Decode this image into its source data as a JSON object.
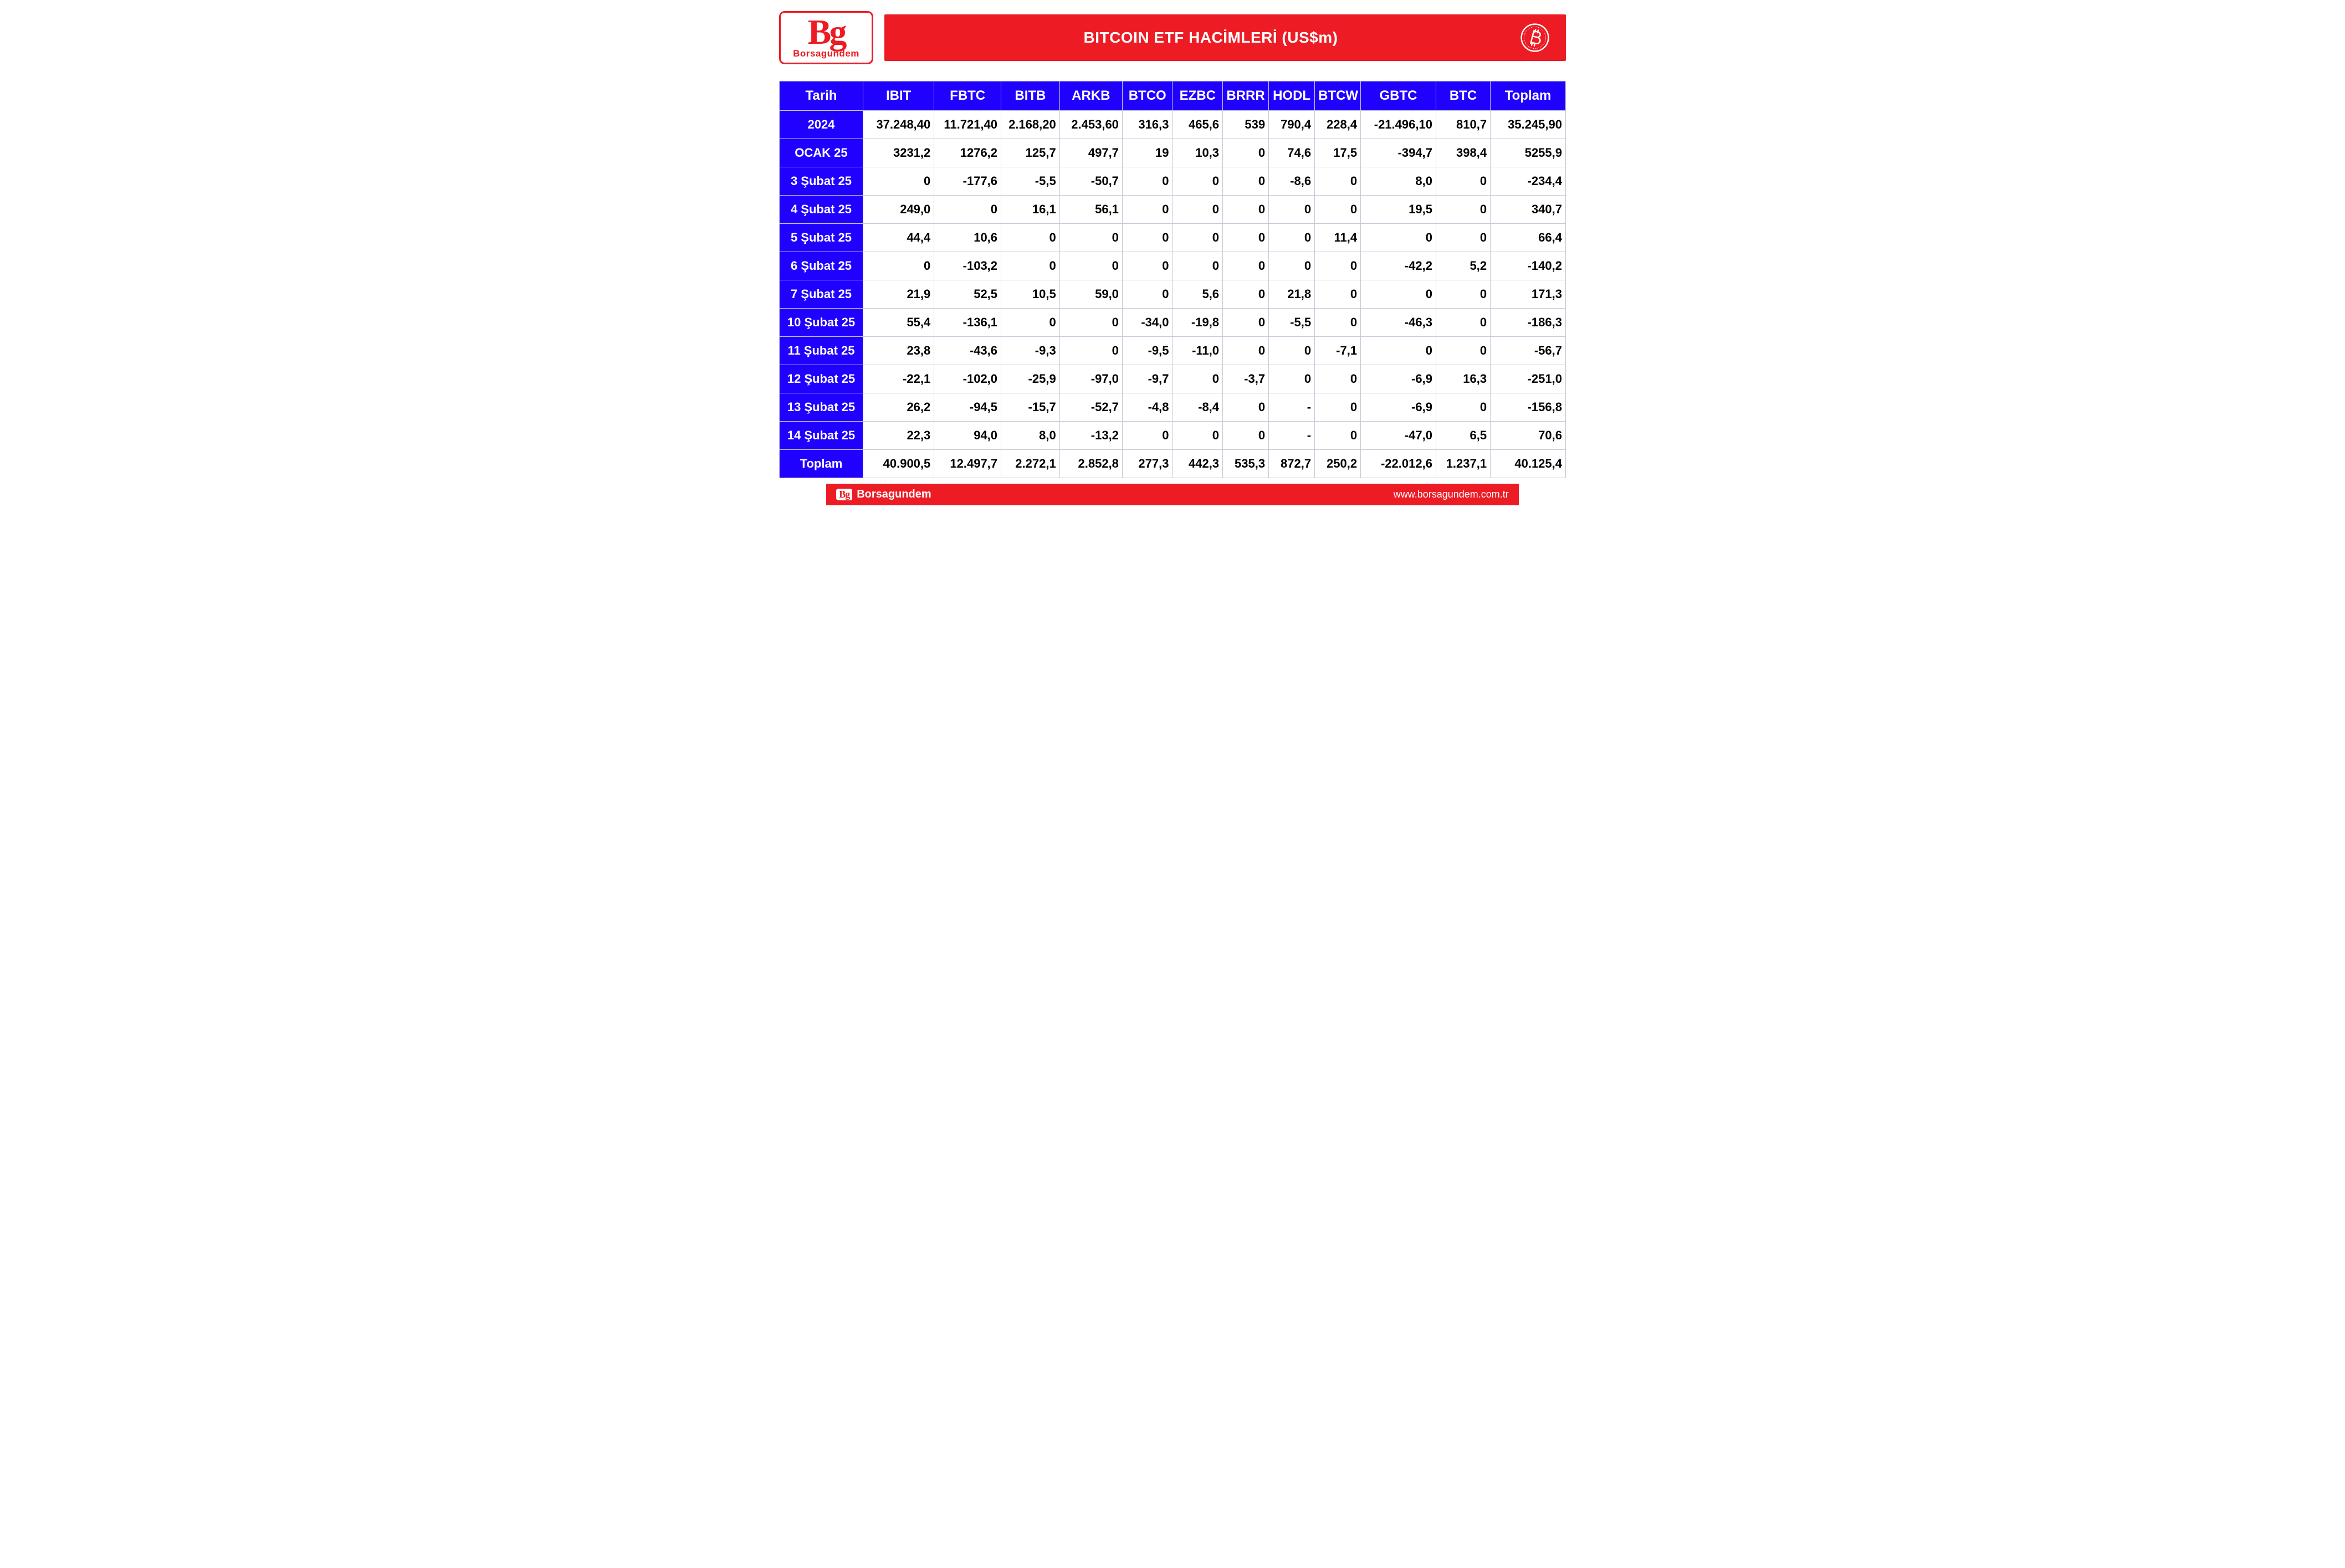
{
  "logo": {
    "big": "Bg",
    "sub": "Borsagundem"
  },
  "title": "BITCOIN ETF HACİMLERİ (US$m)",
  "styling": {
    "brand_red": "#ed1c24",
    "header_blue": "#2000ff",
    "cell_bg": "#ffffff",
    "cell_border": "#c5c9d6",
    "text_white": "#ffffff",
    "text_black": "#000000",
    "header_fontsize": 24,
    "cell_fontsize": 22,
    "title_fontsize": 28,
    "logo_big_fontsize": 64,
    "logo_sub_fontsize": 17,
    "footer_fontsize": 20
  },
  "table": {
    "columns": [
      "Tarih",
      "IBIT",
      "FBTC",
      "BITB",
      "ARKB",
      "BTCO",
      "EZBC",
      "BRRR",
      "HODL",
      "BTCW",
      "GBTC",
      "BTC",
      "Toplam"
    ],
    "col_classes": [
      "col-date",
      "col-ibit",
      "col-fbtc",
      "col-bitb",
      "col-arkb",
      "col-btco",
      "col-ezbc",
      "col-brrr",
      "col-hodl",
      "col-btcw",
      "col-gbtc",
      "col-btc",
      "col-toplam"
    ],
    "rows": [
      {
        "label": "2024",
        "cells": [
          "37.248,40",
          "11.721,40",
          "2.168,20",
          "2.453,60",
          "316,3",
          "465,6",
          "539",
          "790,4",
          "228,4",
          "-21.496,10",
          "810,7",
          "35.245,90"
        ]
      },
      {
        "label": "OCAK 25",
        "cells": [
          "3231,2",
          "1276,2",
          "125,7",
          "497,7",
          "19",
          "10,3",
          "0",
          "74,6",
          "17,5",
          "-394,7",
          "398,4",
          "5255,9"
        ]
      },
      {
        "label": "3 Şubat 25",
        "cells": [
          "0",
          "-177,6",
          "-5,5",
          "-50,7",
          "0",
          "0",
          "0",
          "-8,6",
          "0",
          "8,0",
          "0",
          "-234,4"
        ]
      },
      {
        "label": "4 Şubat 25",
        "cells": [
          "249,0",
          "0",
          "16,1",
          "56,1",
          "0",
          "0",
          "0",
          "0",
          "0",
          "19,5",
          "0",
          "340,7"
        ]
      },
      {
        "label": "5 Şubat 25",
        "cells": [
          "44,4",
          "10,6",
          "0",
          "0",
          "0",
          "0",
          "0",
          "0",
          "11,4",
          "0",
          "0",
          "66,4"
        ]
      },
      {
        "label": "6 Şubat 25",
        "cells": [
          "0",
          "-103,2",
          "0",
          "0",
          "0",
          "0",
          "0",
          "0",
          "0",
          "-42,2",
          "5,2",
          "-140,2"
        ]
      },
      {
        "label": "7 Şubat 25",
        "cells": [
          "21,9",
          "52,5",
          "10,5",
          "59,0",
          "0",
          "5,6",
          "0",
          "21,8",
          "0",
          "0",
          "0",
          "171,3"
        ]
      },
      {
        "label": "10 Şubat 25",
        "cells": [
          "55,4",
          "-136,1",
          "0",
          "0",
          "-34,0",
          "-19,8",
          "0",
          "-5,5",
          "0",
          "-46,3",
          "0",
          "-186,3"
        ]
      },
      {
        "label": "11 Şubat 25",
        "cells": [
          "23,8",
          "-43,6",
          "-9,3",
          "0",
          "-9,5",
          "-11,0",
          "0",
          "0",
          "-7,1",
          "0",
          "0",
          "-56,7"
        ]
      },
      {
        "label": "12 Şubat 25",
        "cells": [
          "-22,1",
          "-102,0",
          "-25,9",
          "-97,0",
          "-9,7",
          "0",
          "-3,7",
          "0",
          "0",
          "-6,9",
          "16,3",
          "-251,0"
        ]
      },
      {
        "label": "13 Şubat 25",
        "cells": [
          "26,2",
          "-94,5",
          "-15,7",
          "-52,7",
          "-4,8",
          "-8,4",
          "0",
          "-",
          "0",
          "-6,9",
          "0",
          "-156,8"
        ]
      },
      {
        "label": "14 Şubat 25",
        "cells": [
          "22,3",
          "94,0",
          "8,0",
          "-13,2",
          "0",
          "0",
          "0",
          "-",
          "0",
          "-47,0",
          "6,5",
          "70,6"
        ]
      },
      {
        "label": "Toplam",
        "cells": [
          "40.900,5",
          "12.497,7",
          "2.272,1",
          "2.852,8",
          "277,3",
          "442,3",
          "535,3",
          "872,7",
          "250,2",
          "-22.012,6",
          "1.237,1",
          "40.125,4"
        ]
      }
    ]
  },
  "footer": {
    "badge": "Bg",
    "brand": "Borsagundem",
    "url": "www.borsagundem.com.tr"
  }
}
